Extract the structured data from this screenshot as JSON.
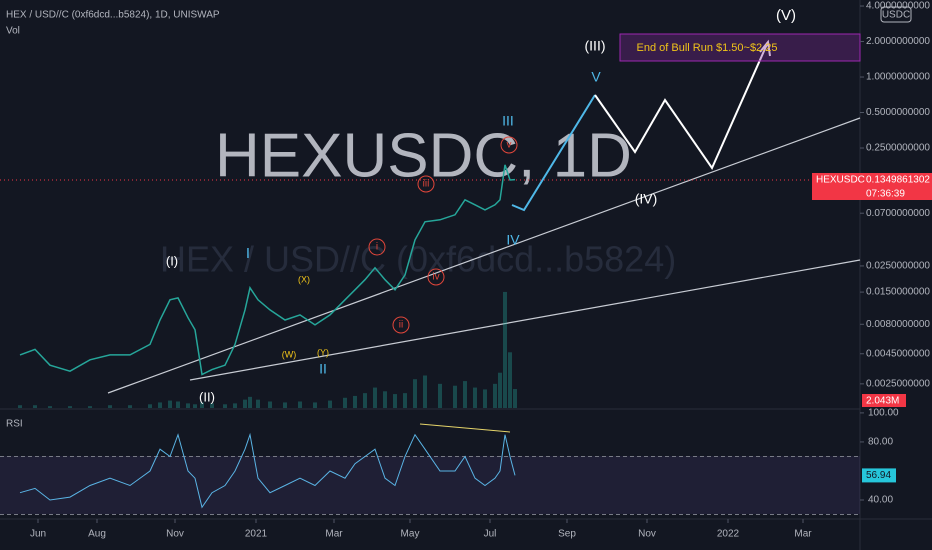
{
  "chart_data": {
    "type": "line",
    "title": "HEX / USD//C (0xf6dcd...b5824), 1D, UNISWAP",
    "watermark": "HEXUSDC, 1D",
    "watermark_sub": "HEX / USD//C (0xf6dcd...b5824)",
    "volume_label": "Vol",
    "currency_button": "USDC",
    "log_scale": true,
    "x": [
      20,
      35,
      50,
      70,
      90,
      110,
      130,
      150,
      160,
      170,
      178,
      188,
      195,
      202,
      212,
      225,
      235,
      245,
      250,
      258,
      270,
      285,
      300,
      315,
      330,
      345,
      355,
      365,
      375,
      385,
      395,
      405,
      415,
      425,
      440,
      455,
      465,
      475,
      485,
      495,
      500,
      505,
      510,
      515
    ],
    "series": [
      {
        "name": "HEXUSDC",
        "color": "#26a69a",
        "values": [
          0.0044,
          0.0049,
          0.0036,
          0.0032,
          0.004,
          0.0044,
          0.0044,
          0.0054,
          0.0087,
          0.0129,
          0.0134,
          0.0091,
          0.0072,
          0.003,
          0.0033,
          0.0036,
          0.0054,
          0.0106,
          0.0163,
          0.0129,
          0.0106,
          0.0087,
          0.0096,
          0.0079,
          0.0096,
          0.0129,
          0.0157,
          0.0191,
          0.0241,
          0.0191,
          0.0157,
          0.021,
          0.0416,
          0.0592,
          0.0615,
          0.0678,
          0.0909,
          0.0825,
          0.0747,
          0.0825,
          0.0909,
          0.18,
          0.134,
          0.1349861302
        ]
      }
    ],
    "last_price_name": "HEXUSDC",
    "last_price_label": "0.1349861302",
    "countdown": "07:36:39",
    "volume": {
      "color": "#26a69a",
      "values": [
        0.3,
        0.3,
        0.2,
        0.2,
        0.2,
        0.3,
        0.3,
        0.4,
        0.6,
        0.8,
        0.7,
        0.5,
        0.4,
        0.6,
        0.5,
        0.4,
        0.5,
        0.9,
        1.2,
        0.9,
        0.7,
        0.6,
        0.7,
        0.6,
        0.8,
        1.1,
        1.3,
        1.6,
        2.2,
        1.8,
        1.5,
        1.6,
        3.1,
        3.5,
        2.6,
        2.4,
        2.9,
        2.2,
        2.0,
        2.6,
        3.8,
        12.5,
        6.0,
        2.043
      ],
      "ylim": [
        0,
        14
      ],
      "last_label": "2.043M"
    },
    "xlim": [
      0,
      860
    ],
    "xticks": [
      {
        "value": 38,
        "label": "Jun"
      },
      {
        "value": 97,
        "label": "Aug"
      },
      {
        "value": 175,
        "label": "Nov"
      },
      {
        "value": 256,
        "label": "2021"
      },
      {
        "value": 334,
        "label": "Mar"
      },
      {
        "value": 410,
        "label": "May"
      },
      {
        "value": 490,
        "label": "Jul"
      },
      {
        "value": 567,
        "label": "Sep"
      },
      {
        "value": 647,
        "label": "Nov"
      },
      {
        "value": 728,
        "label": "2022"
      },
      {
        "value": 803,
        "label": "Mar"
      }
    ],
    "ylim": [
      0.00156,
      4.5
    ],
    "yticks": [
      {
        "value": 4,
        "label": "4.0000000000"
      },
      {
        "value": 2,
        "label": "2.0000000000"
      },
      {
        "value": 1,
        "label": "1.0000000000"
      },
      {
        "value": 0.5,
        "label": "0.5000000000"
      },
      {
        "value": 0.25,
        "label": "0.2500000000"
      },
      {
        "value": 0.07,
        "label": "0.0700000000"
      },
      {
        "value": 0.025,
        "label": "0.0250000000"
      },
      {
        "value": 0.015,
        "label": "0.0150000000"
      },
      {
        "value": 0.008,
        "label": "0.0080000000"
      },
      {
        "value": 0.0045,
        "label": "0.0045000000"
      },
      {
        "value": 0.0025,
        "label": "0.0025000000"
      }
    ],
    "rsi": {
      "name": "RSI",
      "color": "#5ab4e5",
      "values": [
        45,
        48,
        40,
        42,
        50,
        55,
        50,
        60,
        75,
        70,
        85,
        60,
        55,
        35,
        45,
        50,
        60,
        75,
        85,
        55,
        45,
        50,
        55,
        50,
        60,
        55,
        65,
        70,
        75,
        55,
        50,
        70,
        85,
        75,
        60,
        60,
        70,
        55,
        50,
        55,
        60,
        85,
        70,
        56.94
      ],
      "last_label": "56.94",
      "ylim": [
        27.6,
        102
      ],
      "yticks": [
        {
          "value": 100,
          "label": "100.00"
        },
        {
          "value": 80,
          "label": "80.00"
        },
        {
          "value": 40,
          "label": "40.00"
        }
      ],
      "bands": [
        70,
        30
      ]
    },
    "annotations": [
      "(I)",
      "(II)",
      "I",
      "II",
      "(W)",
      "(X)",
      "(Y)",
      "III",
      "IV",
      "V",
      "i",
      "ii",
      "iii",
      "iv",
      "v",
      "(III)",
      "(IV)",
      "(V)",
      "End of Bull Run $1.50~$2.25"
    ]
  }
}
